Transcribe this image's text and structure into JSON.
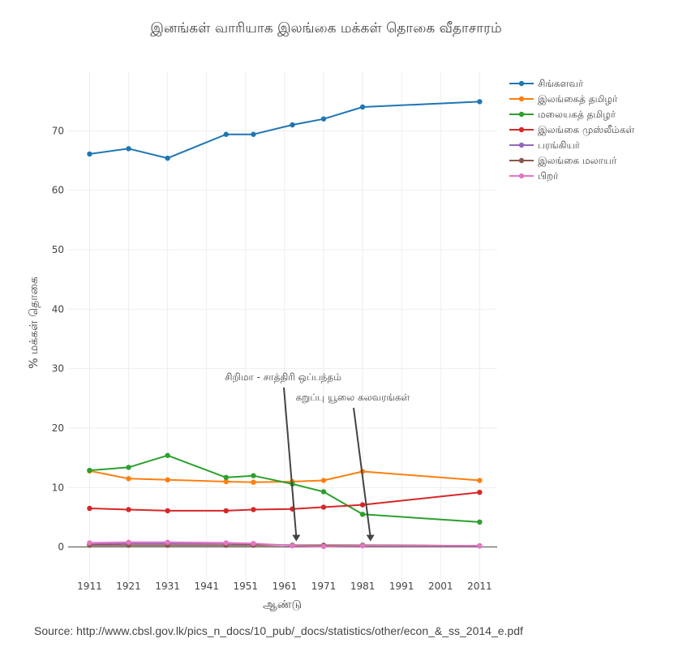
{
  "source_text": "Source: http://www.cbsl.gov.lk/pics_n_docs/10_pub/_docs/statistics/other/econ_&_ss_2014_e.pdf",
  "chart_data": {
    "type": "line",
    "title": "இனங்கள் வாரியாக இலங்கை மக்கள் தொகை வீதாசாரம்",
    "xlabel": "ஆண்டு",
    "ylabel": "% மக்கள் தொகை",
    "xlim": [
      1905.5,
      2015.5
    ],
    "ylim": [
      -7,
      80
    ],
    "x_ticks": [
      1911,
      1921,
      1931,
      1941,
      1951,
      1961,
      1971,
      1981,
      1991,
      2001,
      2011
    ],
    "y_ticks": [
      0,
      10,
      20,
      30,
      40,
      50,
      60,
      70
    ],
    "grid": true,
    "legend_position": "top-right",
    "x": [
      1911,
      1921,
      1931,
      1946,
      1953,
      1963,
      1971,
      1981,
      2011
    ],
    "series": [
      {
        "name": "சிங்களவர்",
        "color": "#1f77b4",
        "values": [
          66.1,
          67.0,
          65.4,
          69.4,
          69.4,
          71.0,
          72.0,
          74.0,
          74.9
        ]
      },
      {
        "name": "இலங்கைத் தமிழர்",
        "color": "#ff7f0e",
        "values": [
          12.8,
          11.5,
          11.3,
          11.0,
          10.9,
          11.0,
          11.2,
          12.7,
          11.2
        ]
      },
      {
        "name": "மலையகத் தமிழர்",
        "color": "#2ca02c",
        "values": [
          12.9,
          13.4,
          15.4,
          11.7,
          12.0,
          10.6,
          9.3,
          5.5,
          4.2
        ]
      },
      {
        "name": "இலங்கை முஸ்லீம்கள்",
        "color": "#d62728",
        "values": [
          6.5,
          6.3,
          6.1,
          6.1,
          6.3,
          6.4,
          6.7,
          7.1,
          9.2
        ]
      },
      {
        "name": "பரங்கியர்",
        "color": "#9467bd",
        "values": [
          0.5,
          0.6,
          0.6,
          0.6,
          0.5,
          0.3,
          0.2,
          0.3,
          0.2
        ]
      },
      {
        "name": "இலங்கை மலாயர்",
        "color": "#8c564b",
        "values": [
          0.3,
          0.3,
          0.3,
          0.3,
          0.3,
          0.3,
          0.3,
          0.3,
          0.2
        ]
      },
      {
        "name": "பிறர்",
        "color": "#e377c2",
        "values": [
          0.7,
          0.8,
          0.8,
          0.7,
          0.6,
          0.2,
          0.1,
          0.2,
          0.2
        ]
      }
    ],
    "annotations": [
      {
        "text": "சிறிமா - சாத்திரி ஒப்பந்தம்",
        "x": 1964,
        "y": 0
      },
      {
        "text": "கறுப்பு யூலை கலவரங்கள்",
        "x": 1983,
        "y": 0
      }
    ]
  }
}
